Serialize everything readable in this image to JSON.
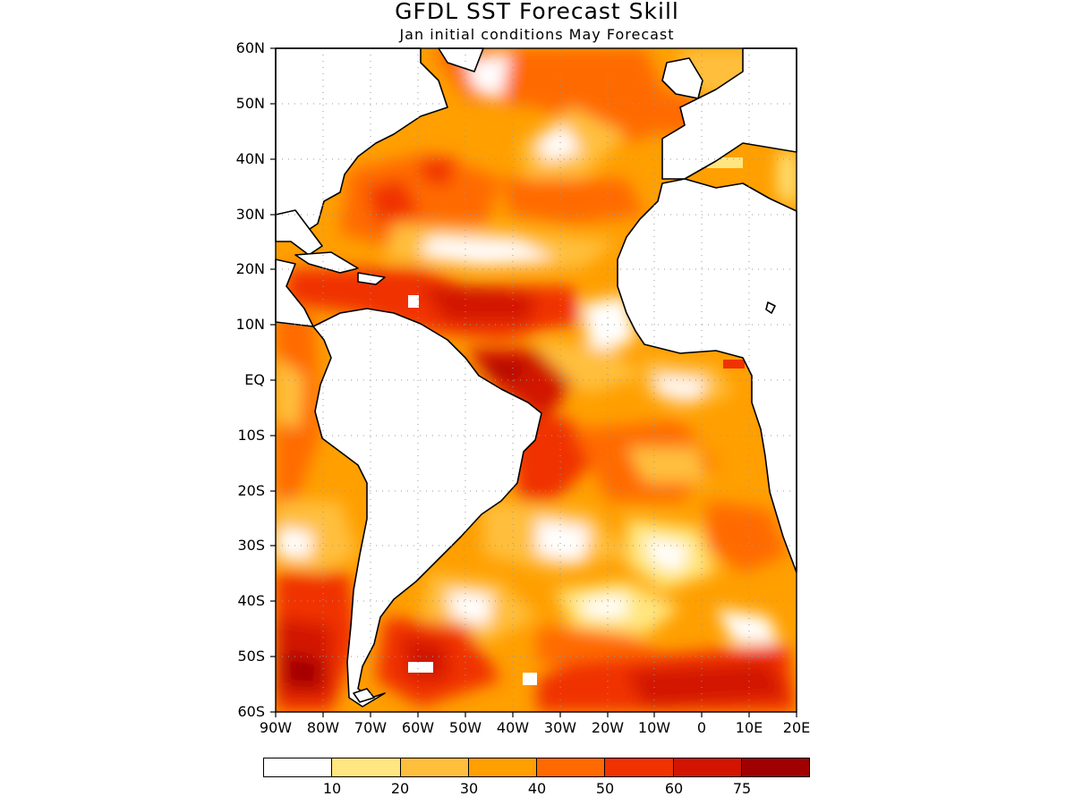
{
  "title": "GFDL SST Forecast Skill",
  "subtitle": "Jan initial conditions   May Forecast",
  "map": {
    "lon_range": [
      -90,
      20
    ],
    "lat_range": [
      -60,
      60
    ],
    "lat_labels": [
      "60N",
      "50N",
      "40N",
      "30N",
      "20N",
      "10N",
      "EQ",
      "10S",
      "20S",
      "30S",
      "40S",
      "50S",
      "60S"
    ],
    "lon_labels": [
      "90W",
      "80W",
      "70W",
      "60W",
      "50W",
      "40W",
      "30W",
      "20W",
      "10W",
      "0",
      "10E",
      "20E"
    ]
  },
  "legend": {
    "colors": [
      "#ffffff",
      "#ffe680",
      "#ffbf3c",
      "#ff9f00",
      "#ff6a00",
      "#f03200",
      "#d21400",
      "#a00000"
    ],
    "labels": [
      "10",
      "20",
      "30",
      "40",
      "50",
      "60",
      "75"
    ]
  }
}
